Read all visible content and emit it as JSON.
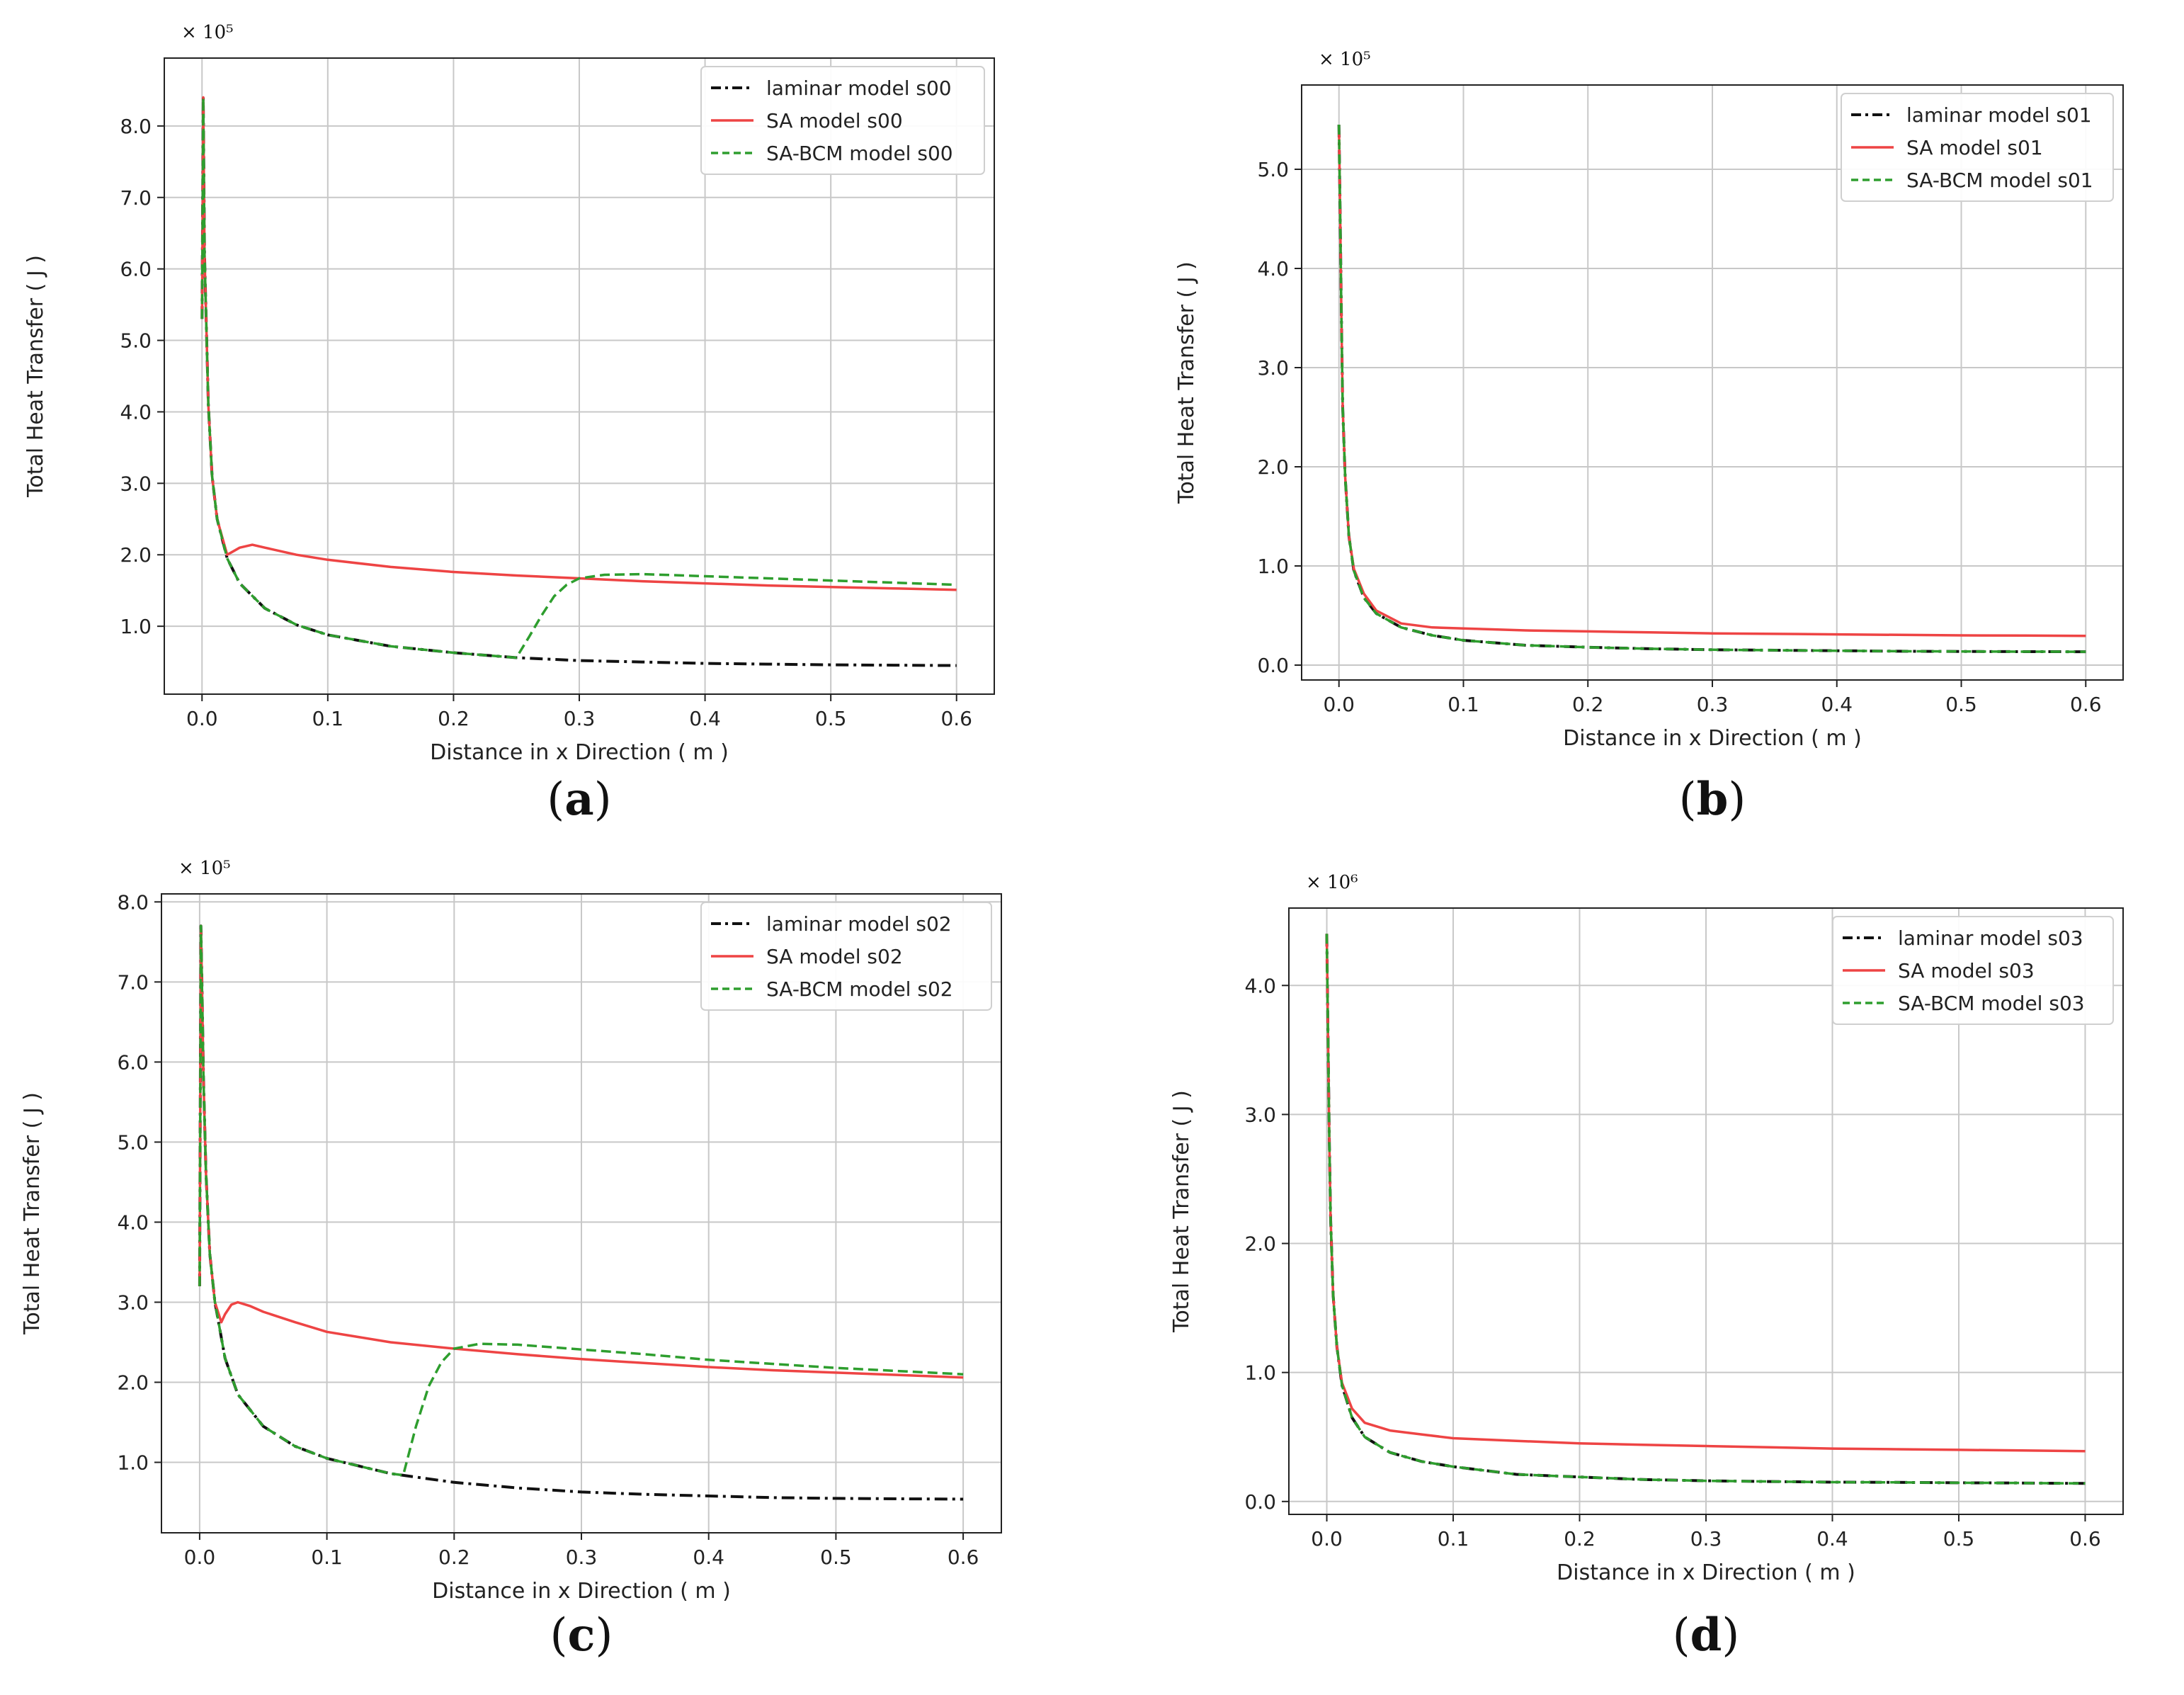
{
  "chart_data": [
    {
      "type": "line",
      "panel": "a",
      "caption": "(a)",
      "caption_letter": "a",
      "offset_label": "× 10⁵",
      "xlabel": "Distance in x Direction ( m )",
      "ylabel": "Total Heat Transfer ( J )",
      "xlim": [
        -0.03,
        0.63
      ],
      "ylim": [
        0.05,
        8.95
      ],
      "xticks": [
        0.0,
        0.1,
        0.2,
        0.3,
        0.4,
        0.5,
        0.6
      ],
      "xtick_labels": [
        "0.0",
        "0.1",
        "0.2",
        "0.3",
        "0.4",
        "0.5",
        "0.6"
      ],
      "yticks": [
        1.0,
        2.0,
        3.0,
        4.0,
        5.0,
        6.0,
        7.0,
        8.0
      ],
      "ytick_labels": [
        "1.0",
        "2.0",
        "3.0",
        "4.0",
        "5.0",
        "6.0",
        "7.0",
        "8.0"
      ],
      "grid": true,
      "legend_position": "top-right",
      "series": [
        {
          "name": "laminar model s00",
          "color": "#111111",
          "style": "dashdot",
          "x": [
            0.0,
            0.001,
            0.002,
            0.003,
            0.005,
            0.008,
            0.012,
            0.02,
            0.03,
            0.05,
            0.075,
            0.1,
            0.15,
            0.2,
            0.25,
            0.3,
            0.35,
            0.4,
            0.45,
            0.5,
            0.55,
            0.6
          ],
          "y": [
            5.3,
            8.4,
            6.2,
            5.5,
            4.1,
            3.1,
            2.5,
            1.95,
            1.6,
            1.25,
            1.02,
            0.88,
            0.72,
            0.63,
            0.56,
            0.52,
            0.5,
            0.48,
            0.47,
            0.46,
            0.455,
            0.45
          ]
        },
        {
          "name": "SA model s00",
          "color": "#ee4444",
          "style": "solid",
          "x": [
            0.0,
            0.001,
            0.002,
            0.003,
            0.005,
            0.008,
            0.012,
            0.02,
            0.025,
            0.03,
            0.04,
            0.05,
            0.075,
            0.1,
            0.15,
            0.2,
            0.25,
            0.3,
            0.35,
            0.4,
            0.45,
            0.5,
            0.55,
            0.6
          ],
          "y": [
            5.3,
            8.4,
            6.2,
            5.5,
            4.1,
            3.1,
            2.5,
            2.0,
            2.05,
            2.1,
            2.14,
            2.1,
            2.0,
            1.93,
            1.83,
            1.76,
            1.71,
            1.67,
            1.63,
            1.6,
            1.57,
            1.55,
            1.53,
            1.51
          ]
        },
        {
          "name": "SA-BCM model s00",
          "color": "#2e9e2e",
          "style": "dashed",
          "x": [
            0.0,
            0.001,
            0.002,
            0.003,
            0.005,
            0.008,
            0.012,
            0.02,
            0.03,
            0.05,
            0.075,
            0.1,
            0.15,
            0.2,
            0.25,
            0.26,
            0.27,
            0.28,
            0.29,
            0.3,
            0.32,
            0.35,
            0.4,
            0.45,
            0.5,
            0.55,
            0.6
          ],
          "y": [
            5.3,
            8.4,
            6.2,
            5.5,
            4.1,
            3.1,
            2.5,
            1.95,
            1.6,
            1.25,
            1.02,
            0.88,
            0.72,
            0.63,
            0.56,
            0.85,
            1.15,
            1.42,
            1.58,
            1.67,
            1.72,
            1.73,
            1.7,
            1.67,
            1.64,
            1.61,
            1.58
          ]
        }
      ]
    },
    {
      "type": "line",
      "panel": "b",
      "caption": "(b)",
      "caption_letter": "b",
      "offset_label": "× 10⁵",
      "xlabel": "Distance in x Direction ( m )",
      "ylabel": "Total Heat Transfer ( J )",
      "xlim": [
        -0.03,
        0.63
      ],
      "ylim": [
        -0.15,
        5.85
      ],
      "xticks": [
        0.0,
        0.1,
        0.2,
        0.3,
        0.4,
        0.5,
        0.6
      ],
      "xtick_labels": [
        "0.0",
        "0.1",
        "0.2",
        "0.3",
        "0.4",
        "0.5",
        "0.6"
      ],
      "yticks": [
        0.0,
        1.0,
        2.0,
        3.0,
        4.0,
        5.0
      ],
      "ytick_labels": [
        "0.0",
        "1.0",
        "2.0",
        "3.0",
        "4.0",
        "5.0"
      ],
      "grid": true,
      "legend_position": "top-right",
      "series": [
        {
          "name": "laminar model s01",
          "color": "#111111",
          "style": "dashdot",
          "x": [
            0.0,
            0.001,
            0.002,
            0.003,
            0.005,
            0.008,
            0.012,
            0.02,
            0.03,
            0.05,
            0.075,
            0.1,
            0.15,
            0.2,
            0.25,
            0.3,
            0.35,
            0.4,
            0.45,
            0.5,
            0.55,
            0.6
          ],
          "y": [
            5.45,
            4.5,
            3.5,
            2.6,
            1.9,
            1.3,
            0.95,
            0.68,
            0.52,
            0.38,
            0.3,
            0.25,
            0.2,
            0.18,
            0.165,
            0.155,
            0.15,
            0.145,
            0.14,
            0.138,
            0.136,
            0.135
          ]
        },
        {
          "name": "SA model s01",
          "color": "#ee4444",
          "style": "solid",
          "x": [
            0.0,
            0.001,
            0.002,
            0.003,
            0.005,
            0.008,
            0.012,
            0.02,
            0.03,
            0.05,
            0.075,
            0.1,
            0.15,
            0.2,
            0.25,
            0.3,
            0.35,
            0.4,
            0.45,
            0.5,
            0.55,
            0.6
          ],
          "y": [
            5.45,
            4.5,
            3.5,
            2.6,
            1.9,
            1.3,
            0.97,
            0.72,
            0.55,
            0.42,
            0.38,
            0.37,
            0.35,
            0.34,
            0.33,
            0.32,
            0.315,
            0.31,
            0.305,
            0.3,
            0.298,
            0.295
          ]
        },
        {
          "name": "SA-BCM model s01",
          "color": "#2e9e2e",
          "style": "dashed",
          "x": [
            0.0,
            0.001,
            0.002,
            0.003,
            0.005,
            0.008,
            0.012,
            0.02,
            0.03,
            0.05,
            0.075,
            0.1,
            0.15,
            0.2,
            0.25,
            0.3,
            0.35,
            0.4,
            0.45,
            0.5,
            0.55,
            0.6
          ],
          "y": [
            5.45,
            4.5,
            3.5,
            2.6,
            1.9,
            1.3,
            0.95,
            0.68,
            0.52,
            0.38,
            0.3,
            0.25,
            0.2,
            0.18,
            0.165,
            0.155,
            0.15,
            0.145,
            0.14,
            0.138,
            0.136,
            0.135
          ]
        }
      ]
    },
    {
      "type": "line",
      "panel": "c",
      "caption": "(c)",
      "caption_letter": "c",
      "offset_label": "× 10⁵",
      "xlabel": "Distance in x Direction ( m )",
      "ylabel": "Total Heat Transfer ( J )",
      "xlim": [
        -0.03,
        0.63
      ],
      "ylim": [
        0.12,
        8.1
      ],
      "xticks": [
        0.0,
        0.1,
        0.2,
        0.3,
        0.4,
        0.5,
        0.6
      ],
      "xtick_labels": [
        "0.0",
        "0.1",
        "0.2",
        "0.3",
        "0.4",
        "0.5",
        "0.6"
      ],
      "yticks": [
        1.0,
        2.0,
        3.0,
        4.0,
        5.0,
        6.0,
        7.0,
        8.0
      ],
      "ytick_labels": [
        "1.0",
        "2.0",
        "3.0",
        "4.0",
        "5.0",
        "6.0",
        "7.0",
        "8.0"
      ],
      "grid": true,
      "legend_position": "top-right",
      "series": [
        {
          "name": "laminar model s02",
          "color": "#111111",
          "style": "dashdot",
          "x": [
            0.0,
            0.001,
            0.002,
            0.003,
            0.005,
            0.008,
            0.012,
            0.02,
            0.03,
            0.05,
            0.075,
            0.1,
            0.15,
            0.2,
            0.25,
            0.3,
            0.35,
            0.4,
            0.45,
            0.5,
            0.55,
            0.6
          ],
          "y": [
            3.2,
            7.7,
            6.8,
            5.8,
            4.6,
            3.6,
            3.0,
            2.3,
            1.85,
            1.45,
            1.2,
            1.05,
            0.86,
            0.75,
            0.68,
            0.63,
            0.6,
            0.58,
            0.56,
            0.55,
            0.545,
            0.54
          ]
        },
        {
          "name": "SA model s02",
          "color": "#ee4444",
          "style": "solid",
          "x": [
            0.0,
            0.001,
            0.002,
            0.003,
            0.005,
            0.008,
            0.012,
            0.017,
            0.02,
            0.025,
            0.03,
            0.04,
            0.05,
            0.075,
            0.1,
            0.15,
            0.2,
            0.25,
            0.3,
            0.35,
            0.4,
            0.45,
            0.5,
            0.55,
            0.6
          ],
          "y": [
            3.2,
            7.7,
            6.8,
            5.8,
            4.6,
            3.6,
            3.0,
            2.75,
            2.85,
            2.97,
            3.0,
            2.95,
            2.88,
            2.75,
            2.63,
            2.5,
            2.42,
            2.35,
            2.29,
            2.24,
            2.19,
            2.15,
            2.12,
            2.09,
            2.06
          ]
        },
        {
          "name": "SA-BCM model s02",
          "color": "#2e9e2e",
          "style": "dashed",
          "x": [
            0.0,
            0.001,
            0.002,
            0.003,
            0.005,
            0.008,
            0.012,
            0.02,
            0.03,
            0.05,
            0.075,
            0.1,
            0.15,
            0.16,
            0.17,
            0.18,
            0.19,
            0.2,
            0.22,
            0.25,
            0.3,
            0.35,
            0.4,
            0.45,
            0.5,
            0.55,
            0.6
          ],
          "y": [
            3.2,
            7.7,
            6.8,
            5.8,
            4.6,
            3.6,
            3.0,
            2.3,
            1.85,
            1.45,
            1.2,
            1.05,
            0.86,
            0.84,
            1.45,
            1.95,
            2.25,
            2.42,
            2.48,
            2.47,
            2.41,
            2.35,
            2.28,
            2.23,
            2.18,
            2.14,
            2.1
          ]
        }
      ]
    },
    {
      "type": "line",
      "panel": "d",
      "caption": "(d)",
      "caption_letter": "d",
      "offset_label": "× 10⁶",
      "xlabel": "Distance in x Direction ( m )",
      "ylabel": "Total Heat Transfer ( J )",
      "xlim": [
        -0.03,
        0.63
      ],
      "ylim": [
        -0.1,
        4.6
      ],
      "xticks": [
        0.0,
        0.1,
        0.2,
        0.3,
        0.4,
        0.5,
        0.6
      ],
      "xtick_labels": [
        "0.0",
        "0.1",
        "0.2",
        "0.3",
        "0.4",
        "0.5",
        "0.6"
      ],
      "yticks": [
        0.0,
        1.0,
        2.0,
        3.0,
        4.0
      ],
      "ytick_labels": [
        "0.0",
        "1.0",
        "2.0",
        "3.0",
        "4.0"
      ],
      "grid": true,
      "legend_position": "top-right",
      "series": [
        {
          "name": "laminar model s03",
          "color": "#111111",
          "style": "dashdot",
          "x": [
            0.0,
            0.001,
            0.002,
            0.003,
            0.005,
            0.008,
            0.012,
            0.02,
            0.03,
            0.05,
            0.075,
            0.1,
            0.15,
            0.2,
            0.25,
            0.3,
            0.35,
            0.4,
            0.45,
            0.5,
            0.55,
            0.6
          ],
          "y": [
            4.4,
            3.6,
            2.8,
            2.2,
            1.6,
            1.2,
            0.9,
            0.65,
            0.5,
            0.38,
            0.31,
            0.27,
            0.21,
            0.19,
            0.17,
            0.16,
            0.155,
            0.15,
            0.148,
            0.145,
            0.143,
            0.14
          ]
        },
        {
          "name": "SA model s03",
          "color": "#ee4444",
          "style": "solid",
          "x": [
            0.0,
            0.001,
            0.002,
            0.003,
            0.005,
            0.008,
            0.012,
            0.02,
            0.03,
            0.05,
            0.075,
            0.1,
            0.15,
            0.2,
            0.25,
            0.3,
            0.35,
            0.4,
            0.45,
            0.5,
            0.55,
            0.6
          ],
          "y": [
            4.4,
            3.6,
            2.8,
            2.2,
            1.6,
            1.2,
            0.92,
            0.72,
            0.61,
            0.55,
            0.52,
            0.49,
            0.47,
            0.45,
            0.44,
            0.43,
            0.42,
            0.41,
            0.405,
            0.4,
            0.395,
            0.39
          ]
        },
        {
          "name": "SA-BCM model s03",
          "color": "#2e9e2e",
          "style": "dashed",
          "x": [
            0.0,
            0.001,
            0.002,
            0.003,
            0.005,
            0.008,
            0.012,
            0.02,
            0.03,
            0.05,
            0.075,
            0.1,
            0.15,
            0.2,
            0.25,
            0.3,
            0.35,
            0.4,
            0.45,
            0.5,
            0.55,
            0.6
          ],
          "y": [
            4.4,
            3.6,
            2.8,
            2.2,
            1.6,
            1.2,
            0.9,
            0.65,
            0.5,
            0.38,
            0.31,
            0.27,
            0.21,
            0.19,
            0.17,
            0.16,
            0.155,
            0.15,
            0.148,
            0.145,
            0.143,
            0.14
          ]
        }
      ]
    }
  ]
}
